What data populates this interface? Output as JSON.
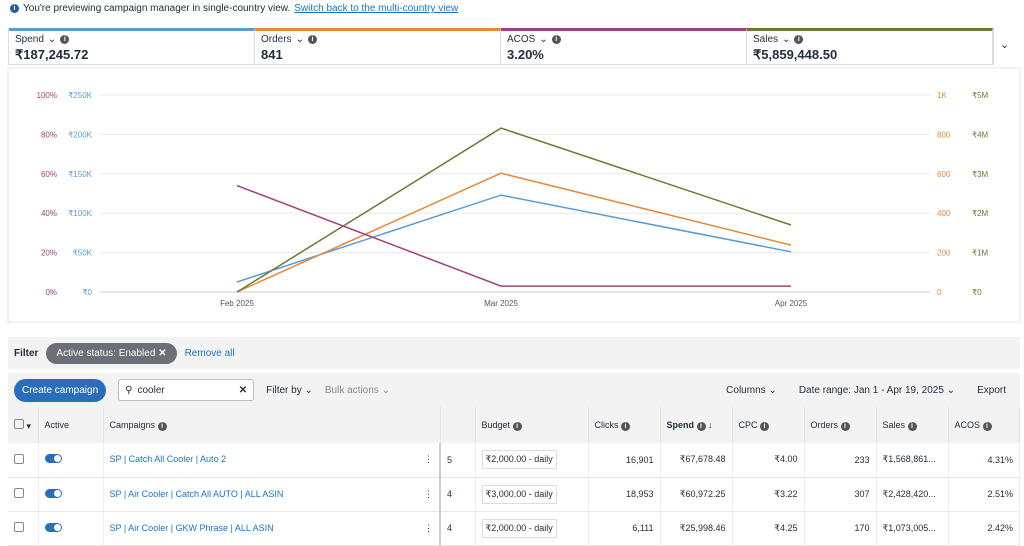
{
  "banner": {
    "text": "You're previewing campaign manager in single-country view.",
    "link": "Switch back to the multi-country view"
  },
  "metrics": [
    {
      "label": "Spend",
      "value": "₹187,245.72",
      "color": "#5b9bd5"
    },
    {
      "label": "Orders",
      "value": "841",
      "color": "#e8883a"
    },
    {
      "label": "ACOS",
      "value": "3.20%",
      "color": "#a0407f"
    },
    {
      "label": "Sales",
      "value": "₹5,859,448.50",
      "color": "#6b7a32"
    }
  ],
  "chart_data": {
    "type": "line",
    "categories": [
      "Feb 2025",
      "Mar 2025",
      "Apr 2025"
    ],
    "axes": {
      "acos": {
        "ticks": [
          "0%",
          "20%",
          "40%",
          "60%",
          "80%",
          "100%"
        ],
        "range": [
          0,
          100
        ]
      },
      "spend": {
        "ticks": [
          "₹0",
          "₹50K",
          "₹100K",
          "₹150K",
          "₹200K",
          "₹250K"
        ],
        "range": [
          0,
          250000
        ]
      },
      "orders": {
        "ticks": [
          "0",
          "200",
          "400",
          "600",
          "800",
          "1K"
        ],
        "range": [
          0,
          1000
        ]
      },
      "sales": {
        "ticks": [
          "₹0",
          "₹1M",
          "₹2M",
          "₹3M",
          "₹4M",
          "₹5M"
        ],
        "range": [
          0,
          5000000
        ]
      }
    },
    "series": [
      {
        "name": "Spend",
        "axis": "spend",
        "color": "#5b9bd5",
        "values": [
          12700,
          123000,
          51000
        ]
      },
      {
        "name": "Orders",
        "axis": "orders",
        "color": "#e8883a",
        "values": [
          0,
          603,
          238
        ]
      },
      {
        "name": "ACOS",
        "axis": "acos",
        "color": "#a0407f",
        "values": [
          54,
          3,
          3
        ]
      },
      {
        "name": "Sales",
        "axis": "sales",
        "color": "#6b7a32",
        "values": [
          0,
          4160000,
          1700000
        ]
      }
    ],
    "grid": true
  },
  "filter": {
    "label": "Filter",
    "chip": "Active status: Enabled",
    "remove": "Remove all"
  },
  "toolbar": {
    "create": "Create campaign",
    "search_value": "cooler",
    "filter_by": "Filter by",
    "bulk": "Bulk actions",
    "columns": "Columns",
    "date_range": "Date range: Jan 1 - Apr 19, 2025",
    "export": "Export"
  },
  "table": {
    "headers": {
      "active": "Active",
      "campaigns": "Campaigns",
      "budget": "Budget",
      "clicks": "Clicks",
      "spend": "Spend",
      "cpc": "CPC",
      "orders": "Orders",
      "sales": "Sales",
      "acos": "ACOS"
    },
    "rows": [
      {
        "name": "SP | Catch All Cooler | Auto 2",
        "hidden": "5",
        "budget": "₹2,000.00 - daily",
        "clicks": "16,901",
        "spend": "₹67,678.48",
        "cpc": "₹4.00",
        "orders": "233",
        "sales": "₹1,568,861...",
        "acos": "4.31%"
      },
      {
        "name": "SP | Air Cooler  | Catch All AUTO | ALL ASIN",
        "hidden": "4",
        "budget": "₹3,000.00 - daily",
        "clicks": "18,953",
        "spend": "₹60,972.25",
        "cpc": "₹3.22",
        "orders": "307",
        "sales": "₹2,428,420...",
        "acos": "2.51%"
      },
      {
        "name": "SP | Air Cooler | GKW Phrase | ALL ASIN",
        "hidden": "4",
        "budget": "₹2,000.00 - daily",
        "clicks": "6,111",
        "spend": "₹25,998.46",
        "cpc": "₹4.25",
        "orders": "170",
        "sales": "₹1,073,005...",
        "acos": "2.42%"
      }
    ]
  }
}
